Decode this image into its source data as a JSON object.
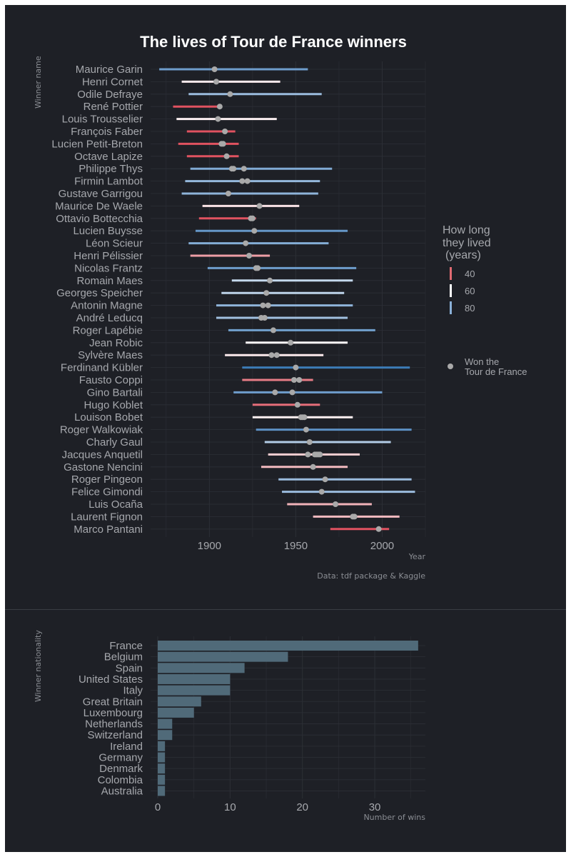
{
  "title": "The lives of Tour de France winners",
  "caption": "Data: tdf package & Kaggle",
  "legend": {
    "lifespan_title": [
      "How long",
      "they lived",
      "(years)"
    ],
    "lifespan_labels": [
      "40",
      "60",
      "80"
    ],
    "won_label": [
      "Won the",
      "Tour de France"
    ]
  },
  "colors": {
    "background": "#1e2026",
    "grid": "#2c2f36",
    "point": "#a9a9a9",
    "bar": "#506a79"
  },
  "chart_data": [
    {
      "type": "range",
      "title": "The lives of Tour de France winners",
      "xlabel": "Year",
      "ylabel": "Winner name",
      "xlim": [
        1866,
        2025
      ],
      "xticks": [
        1900,
        1950,
        2000
      ],
      "color_scale": "lifespan in years: ~35 red, ~60 white, ~100 dark blue",
      "riders": [
        {
          "name": "Maurice Garin",
          "born": 1871,
          "died": 1957,
          "wins": [
            1903
          ]
        },
        {
          "name": "Henri Cornet",
          "born": 1884,
          "died": 1941,
          "wins": [
            1904
          ]
        },
        {
          "name": "Odile Defraye",
          "born": 1888,
          "died": 1965,
          "wins": [
            1912
          ]
        },
        {
          "name": "René Pottier",
          "born": 1879,
          "died": 1907,
          "wins": [
            1906
          ]
        },
        {
          "name": "Louis Trousselier",
          "born": 1881,
          "died": 1939,
          "wins": [
            1905
          ]
        },
        {
          "name": "François Faber",
          "born": 1887,
          "died": 1915,
          "wins": [
            1909
          ]
        },
        {
          "name": "Lucien Petit-Breton",
          "born": 1882,
          "died": 1917,
          "wins": [
            1907,
            1908
          ]
        },
        {
          "name": "Octave Lapize",
          "born": 1887,
          "died": 1917,
          "wins": [
            1910
          ]
        },
        {
          "name": "Philippe Thys",
          "born": 1889,
          "died": 1971,
          "wins": [
            1913,
            1914,
            1920
          ]
        },
        {
          "name": "Firmin Lambot",
          "born": 1886,
          "died": 1964,
          "wins": [
            1919,
            1922
          ]
        },
        {
          "name": "Gustave Garrigou",
          "born": 1884,
          "died": 1963,
          "wins": [
            1911
          ]
        },
        {
          "name": "Maurice De Waele",
          "born": 1896,
          "died": 1952,
          "wins": [
            1929
          ]
        },
        {
          "name": "Ottavio Bottecchia",
          "born": 1894,
          "died": 1927,
          "wins": [
            1924,
            1925
          ]
        },
        {
          "name": "Lucien Buysse",
          "born": 1892,
          "died": 1980,
          "wins": [
            1926
          ]
        },
        {
          "name": "Léon Scieur",
          "born": 1888,
          "died": 1969,
          "wins": [
            1921
          ]
        },
        {
          "name": "Henri Pélissier",
          "born": 1889,
          "died": 1935,
          "wins": [
            1923
          ]
        },
        {
          "name": "Nicolas Frantz",
          "born": 1899,
          "died": 1985,
          "wins": [
            1927,
            1928
          ]
        },
        {
          "name": "Romain Maes",
          "born": 1913,
          "died": 1983,
          "wins": [
            1935
          ]
        },
        {
          "name": "Georges Speicher",
          "born": 1907,
          "died": 1978,
          "wins": [
            1933
          ]
        },
        {
          "name": "Antonin Magne",
          "born": 1904,
          "died": 1983,
          "wins": [
            1931,
            1934
          ]
        },
        {
          "name": "André Leducq",
          "born": 1904,
          "died": 1980,
          "wins": [
            1930,
            1932
          ]
        },
        {
          "name": "Roger Lapébie",
          "born": 1911,
          "died": 1996,
          "wins": [
            1937
          ]
        },
        {
          "name": "Jean Robic",
          "born": 1921,
          "died": 1980,
          "wins": [
            1947
          ]
        },
        {
          "name": "Sylvère Maes",
          "born": 1909,
          "died": 1966,
          "wins": [
            1936,
            1939
          ]
        },
        {
          "name": "Ferdinand Kübler",
          "born": 1919,
          "died": 2016,
          "wins": [
            1950
          ]
        },
        {
          "name": "Fausto Coppi",
          "born": 1919,
          "died": 1960,
          "wins": [
            1949,
            1952
          ]
        },
        {
          "name": "Gino Bartali",
          "born": 1914,
          "died": 2000,
          "wins": [
            1938,
            1948
          ]
        },
        {
          "name": "Hugo Koblet",
          "born": 1925,
          "died": 1964,
          "wins": [
            1951
          ]
        },
        {
          "name": "Louison Bobet",
          "born": 1925,
          "died": 1983,
          "wins": [
            1953,
            1954,
            1955
          ]
        },
        {
          "name": "Roger Walkowiak",
          "born": 1927,
          "died": 2017,
          "wins": [
            1956
          ]
        },
        {
          "name": "Charly Gaul",
          "born": 1932,
          "died": 2005,
          "wins": [
            1958
          ]
        },
        {
          "name": "Jacques Anquetil",
          "born": 1934,
          "died": 1987,
          "wins": [
            1957,
            1961,
            1962,
            1963,
            1964
          ]
        },
        {
          "name": "Gastone Nencini",
          "born": 1930,
          "died": 1980,
          "wins": [
            1960
          ]
        },
        {
          "name": "Roger Pingeon",
          "born": 1940,
          "died": 2017,
          "wins": [
            1967
          ]
        },
        {
          "name": "Felice Gimondi",
          "born": 1942,
          "died": 2019,
          "wins": [
            1965
          ]
        },
        {
          "name": "Luis Ocaña",
          "born": 1945,
          "died": 1994,
          "wins": [
            1973
          ]
        },
        {
          "name": "Laurent Fignon",
          "born": 1960,
          "died": 2010,
          "wins": [
            1983,
            1984
          ]
        },
        {
          "name": "Marco Pantani",
          "born": 1970,
          "died": 2004,
          "wins": [
            1998
          ]
        }
      ]
    },
    {
      "type": "bar",
      "orientation": "horizontal",
      "xlabel": "Number of wins",
      "ylabel": "Winner nationality",
      "xlim": [
        0,
        37
      ],
      "xticks": [
        0,
        10,
        20,
        30
      ],
      "categories": [
        "France",
        "Belgium",
        "Spain",
        "United States",
        "Italy",
        "Great Britain",
        "Luxembourg",
        "Netherlands",
        "Switzerland",
        "Ireland",
        "Germany",
        "Denmark",
        "Colombia",
        "Australia"
      ],
      "values": [
        36,
        18,
        12,
        10,
        10,
        6,
        5,
        2,
        2,
        1,
        1,
        1,
        1,
        1
      ]
    }
  ]
}
